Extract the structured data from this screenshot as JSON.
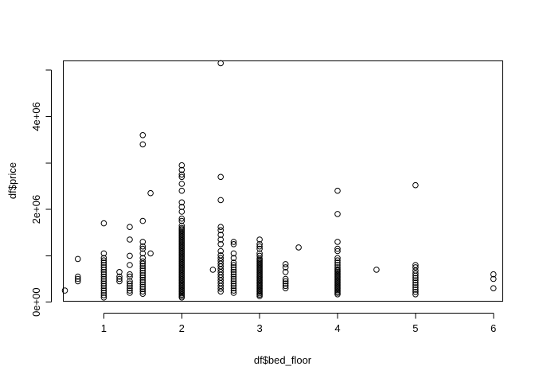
{
  "chart_data": {
    "type": "scatter",
    "title": "",
    "xlabel": "df$bed_floor",
    "ylabel": "df$price",
    "xlim": [
      0.48,
      6.12
    ],
    "ylim": [
      20000,
      5200000
    ],
    "x_ticks": [
      1,
      2,
      3,
      4,
      5,
      6
    ],
    "x_tick_labels": [
      "1",
      "2",
      "3",
      "4",
      "5",
      "6"
    ],
    "y_ticks": [
      0,
      2000000,
      4000000
    ],
    "y_tick_labels": [
      "0e+00",
      "2e+06",
      "4e+06"
    ],
    "y_minor_ticks": [
      1000000,
      3000000,
      5000000
    ],
    "grid": false,
    "legend": "none",
    "points": [
      [
        0.5,
        250000
      ],
      [
        0.667,
        450000
      ],
      [
        0.667,
        500000
      ],
      [
        0.667,
        550000
      ],
      [
        0.667,
        930000
      ],
      [
        1.0,
        100000
      ],
      [
        1.0,
        150000
      ],
      [
        1.0,
        200000
      ],
      [
        1.0,
        250000
      ],
      [
        1.0,
        300000
      ],
      [
        1.0,
        350000
      ],
      [
        1.0,
        400000
      ],
      [
        1.0,
        450000
      ],
      [
        1.0,
        500000
      ],
      [
        1.0,
        550000
      ],
      [
        1.0,
        600000
      ],
      [
        1.0,
        650000
      ],
      [
        1.0,
        700000
      ],
      [
        1.0,
        750000
      ],
      [
        1.0,
        800000
      ],
      [
        1.0,
        850000
      ],
      [
        1.0,
        900000
      ],
      [
        1.0,
        950000
      ],
      [
        1.0,
        1050000
      ],
      [
        1.0,
        1700000
      ],
      [
        1.2,
        450000
      ],
      [
        1.2,
        500000
      ],
      [
        1.2,
        550000
      ],
      [
        1.2,
        650000
      ],
      [
        1.333,
        200000
      ],
      [
        1.333,
        250000
      ],
      [
        1.333,
        300000
      ],
      [
        1.333,
        350000
      ],
      [
        1.333,
        400000
      ],
      [
        1.333,
        450000
      ],
      [
        1.333,
        550000
      ],
      [
        1.333,
        600000
      ],
      [
        1.333,
        800000
      ],
      [
        1.333,
        1000000
      ],
      [
        1.333,
        1350000
      ],
      [
        1.333,
        1620000
      ],
      [
        1.5,
        180000
      ],
      [
        1.5,
        230000
      ],
      [
        1.5,
        280000
      ],
      [
        1.5,
        330000
      ],
      [
        1.5,
        380000
      ],
      [
        1.5,
        430000
      ],
      [
        1.5,
        480000
      ],
      [
        1.5,
        530000
      ],
      [
        1.5,
        580000
      ],
      [
        1.5,
        630000
      ],
      [
        1.5,
        680000
      ],
      [
        1.5,
        730000
      ],
      [
        1.5,
        780000
      ],
      [
        1.5,
        830000
      ],
      [
        1.5,
        880000
      ],
      [
        1.5,
        950000
      ],
      [
        1.5,
        1050000
      ],
      [
        1.5,
        1150000
      ],
      [
        1.5,
        1200000
      ],
      [
        1.5,
        1300000
      ],
      [
        1.5,
        1750000
      ],
      [
        1.5,
        3400000
      ],
      [
        1.5,
        3600000
      ],
      [
        1.6,
        1050000
      ],
      [
        1.6,
        2350000
      ],
      [
        2.0,
        100000
      ],
      [
        2.0,
        130000
      ],
      [
        2.0,
        160000
      ],
      [
        2.0,
        190000
      ],
      [
        2.0,
        220000
      ],
      [
        2.0,
        250000
      ],
      [
        2.0,
        280000
      ],
      [
        2.0,
        310000
      ],
      [
        2.0,
        340000
      ],
      [
        2.0,
        370000
      ],
      [
        2.0,
        400000
      ],
      [
        2.0,
        430000
      ],
      [
        2.0,
        460000
      ],
      [
        2.0,
        490000
      ],
      [
        2.0,
        520000
      ],
      [
        2.0,
        550000
      ],
      [
        2.0,
        580000
      ],
      [
        2.0,
        610000
      ],
      [
        2.0,
        640000
      ],
      [
        2.0,
        670000
      ],
      [
        2.0,
        700000
      ],
      [
        2.0,
        730000
      ],
      [
        2.0,
        760000
      ],
      [
        2.0,
        790000
      ],
      [
        2.0,
        820000
      ],
      [
        2.0,
        850000
      ],
      [
        2.0,
        880000
      ],
      [
        2.0,
        910000
      ],
      [
        2.0,
        940000
      ],
      [
        2.0,
        970000
      ],
      [
        2.0,
        1000000
      ],
      [
        2.0,
        1030000
      ],
      [
        2.0,
        1060000
      ],
      [
        2.0,
        1090000
      ],
      [
        2.0,
        1120000
      ],
      [
        2.0,
        1150000
      ],
      [
        2.0,
        1180000
      ],
      [
        2.0,
        1210000
      ],
      [
        2.0,
        1240000
      ],
      [
        2.0,
        1270000
      ],
      [
        2.0,
        1300000
      ],
      [
        2.0,
        1330000
      ],
      [
        2.0,
        1360000
      ],
      [
        2.0,
        1390000
      ],
      [
        2.0,
        1420000
      ],
      [
        2.0,
        1450000
      ],
      [
        2.0,
        1480000
      ],
      [
        2.0,
        1510000
      ],
      [
        2.0,
        1540000
      ],
      [
        2.0,
        1570000
      ],
      [
        2.0,
        1600000
      ],
      [
        2.0,
        1650000
      ],
      [
        2.0,
        1750000
      ],
      [
        2.0,
        1800000
      ],
      [
        2.0,
        1950000
      ],
      [
        2.0,
        2050000
      ],
      [
        2.0,
        2150000
      ],
      [
        2.0,
        2400000
      ],
      [
        2.0,
        2550000
      ],
      [
        2.0,
        2700000
      ],
      [
        2.0,
        2750000
      ],
      [
        2.0,
        2850000
      ],
      [
        2.0,
        2950000
      ],
      [
        2.4,
        700000
      ],
      [
        2.5,
        230000
      ],
      [
        2.5,
        290000
      ],
      [
        2.5,
        350000
      ],
      [
        2.5,
        410000
      ],
      [
        2.5,
        470000
      ],
      [
        2.5,
        530000
      ],
      [
        2.5,
        590000
      ],
      [
        2.5,
        650000
      ],
      [
        2.5,
        710000
      ],
      [
        2.5,
        770000
      ],
      [
        2.5,
        830000
      ],
      [
        2.5,
        890000
      ],
      [
        2.5,
        950000
      ],
      [
        2.5,
        1010000
      ],
      [
        2.5,
        1100000
      ],
      [
        2.5,
        1250000
      ],
      [
        2.5,
        1350000
      ],
      [
        2.5,
        1450000
      ],
      [
        2.5,
        1550000
      ],
      [
        2.5,
        1620000
      ],
      [
        2.5,
        2200000
      ],
      [
        2.5,
        2700000
      ],
      [
        2.5,
        5150000
      ],
      [
        2.667,
        200000
      ],
      [
        2.667,
        250000
      ],
      [
        2.667,
        300000
      ],
      [
        2.667,
        350000
      ],
      [
        2.667,
        400000
      ],
      [
        2.667,
        450000
      ],
      [
        2.667,
        500000
      ],
      [
        2.667,
        550000
      ],
      [
        2.667,
        600000
      ],
      [
        2.667,
        650000
      ],
      [
        2.667,
        700000
      ],
      [
        2.667,
        750000
      ],
      [
        2.667,
        800000
      ],
      [
        2.667,
        850000
      ],
      [
        2.667,
        950000
      ],
      [
        2.667,
        1050000
      ],
      [
        2.667,
        1250000
      ],
      [
        2.667,
        1300000
      ],
      [
        3.0,
        130000
      ],
      [
        3.0,
        160000
      ],
      [
        3.0,
        190000
      ],
      [
        3.0,
        220000
      ],
      [
        3.0,
        250000
      ],
      [
        3.0,
        280000
      ],
      [
        3.0,
        310000
      ],
      [
        3.0,
        340000
      ],
      [
        3.0,
        370000
      ],
      [
        3.0,
        400000
      ],
      [
        3.0,
        430000
      ],
      [
        3.0,
        460000
      ],
      [
        3.0,
        490000
      ],
      [
        3.0,
        520000
      ],
      [
        3.0,
        550000
      ],
      [
        3.0,
        580000
      ],
      [
        3.0,
        610000
      ],
      [
        3.0,
        640000
      ],
      [
        3.0,
        670000
      ],
      [
        3.0,
        700000
      ],
      [
        3.0,
        730000
      ],
      [
        3.0,
        760000
      ],
      [
        3.0,
        790000
      ],
      [
        3.0,
        820000
      ],
      [
        3.0,
        850000
      ],
      [
        3.0,
        880000
      ],
      [
        3.0,
        910000
      ],
      [
        3.0,
        940000
      ],
      [
        3.0,
        1000000
      ],
      [
        3.0,
        1050000
      ],
      [
        3.0,
        1150000
      ],
      [
        3.0,
        1200000
      ],
      [
        3.0,
        1250000
      ],
      [
        3.0,
        1350000
      ],
      [
        3.333,
        300000
      ],
      [
        3.333,
        350000
      ],
      [
        3.333,
        400000
      ],
      [
        3.333,
        450000
      ],
      [
        3.333,
        500000
      ],
      [
        3.333,
        650000
      ],
      [
        3.333,
        750000
      ],
      [
        3.333,
        820000
      ],
      [
        3.5,
        1180000
      ],
      [
        4.0,
        170000
      ],
      [
        4.0,
        200000
      ],
      [
        4.0,
        230000
      ],
      [
        4.0,
        260000
      ],
      [
        4.0,
        290000
      ],
      [
        4.0,
        320000
      ],
      [
        4.0,
        350000
      ],
      [
        4.0,
        380000
      ],
      [
        4.0,
        410000
      ],
      [
        4.0,
        440000
      ],
      [
        4.0,
        470000
      ],
      [
        4.0,
        500000
      ],
      [
        4.0,
        530000
      ],
      [
        4.0,
        560000
      ],
      [
        4.0,
        590000
      ],
      [
        4.0,
        620000
      ],
      [
        4.0,
        650000
      ],
      [
        4.0,
        680000
      ],
      [
        4.0,
        710000
      ],
      [
        4.0,
        750000
      ],
      [
        4.0,
        800000
      ],
      [
        4.0,
        850000
      ],
      [
        4.0,
        900000
      ],
      [
        4.0,
        950000
      ],
      [
        4.0,
        1100000
      ],
      [
        4.0,
        1150000
      ],
      [
        4.0,
        1300000
      ],
      [
        4.0,
        1900000
      ],
      [
        4.0,
        2400000
      ],
      [
        4.5,
        700000
      ],
      [
        5.0,
        170000
      ],
      [
        5.0,
        220000
      ],
      [
        5.0,
        270000
      ],
      [
        5.0,
        320000
      ],
      [
        5.0,
        370000
      ],
      [
        5.0,
        420000
      ],
      [
        5.0,
        470000
      ],
      [
        5.0,
        520000
      ],
      [
        5.0,
        570000
      ],
      [
        5.0,
        620000
      ],
      [
        5.0,
        680000
      ],
      [
        5.0,
        750000
      ],
      [
        5.0,
        800000
      ],
      [
        5.0,
        2520000
      ],
      [
        6.0,
        300000
      ],
      [
        6.0,
        500000
      ],
      [
        6.0,
        600000
      ]
    ]
  }
}
